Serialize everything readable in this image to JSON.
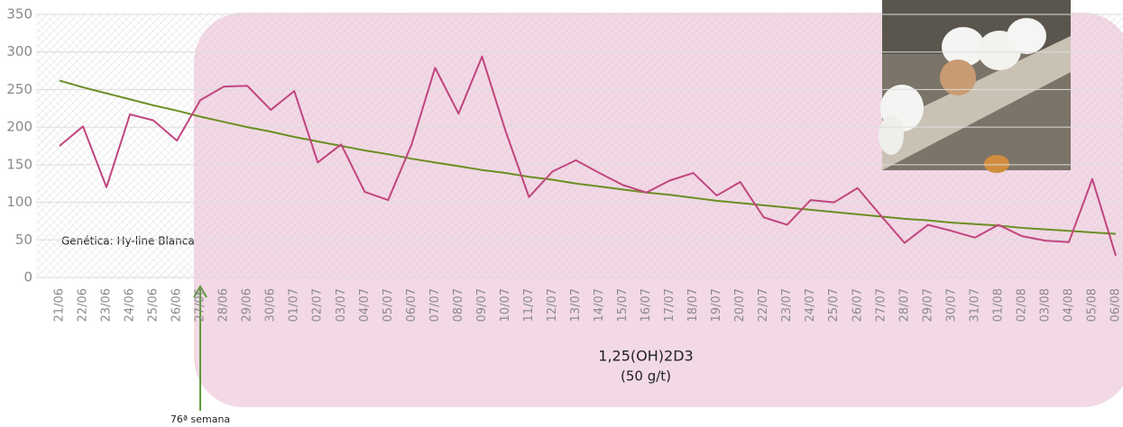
{
  "chart_data": {
    "type": "line",
    "categories": [
      "21/06",
      "22/06",
      "23/06",
      "24/06",
      "25/06",
      "26/06",
      "27/06",
      "28/06",
      "29/06",
      "30/06",
      "01/07",
      "02/07",
      "03/07",
      "04/07",
      "05/07",
      "06/07",
      "07/07",
      "08/07",
      "09/07",
      "10/07",
      "11/07",
      "12/07",
      "13/07",
      "14/07",
      "15/07",
      "16/07",
      "17/07",
      "18/07",
      "19/07",
      "20/07",
      "22/07",
      "23/07",
      "24/07",
      "25/07",
      "26/07",
      "27/07",
      "28/07",
      "29/07",
      "30/07",
      "31/07",
      "01/08",
      "02/08",
      "03/08",
      "04/08",
      "05/08",
      "06/08"
    ],
    "values": [
      175,
      201,
      120,
      217,
      209,
      182,
      236,
      254,
      255,
      223,
      248,
      153,
      177,
      114,
      103,
      177,
      279,
      218,
      294,
      195,
      107,
      141,
      156,
      139,
      123,
      113,
      129,
      139,
      109,
      127,
      80,
      70,
      103,
      100,
      119,
      82,
      46,
      70,
      62,
      53,
      70,
      55,
      49,
      47,
      131,
      29
    ],
    "color": "#c0457f",
    "trend_values": [
      262,
      253,
      245,
      237,
      229,
      222,
      214,
      207,
      200,
      194,
      187,
      181,
      175,
      169,
      164,
      158,
      153,
      148,
      143,
      139,
      134,
      130,
      125,
      121,
      117,
      113,
      110,
      106,
      102,
      99,
      96,
      93,
      90,
      87,
      84,
      81,
      78,
      76,
      73,
      71,
      69,
      66,
      64,
      62,
      60,
      58
    ],
    "trend_color": "#6b8e23",
    "ylim": [
      0,
      350
    ],
    "yticks": [
      0,
      50,
      100,
      150,
      200,
      250,
      300,
      350
    ],
    "grid": true,
    "annotations": {
      "genetics": "Genética: Hy-line Blanca",
      "treatment": "1,25(OH)2D3",
      "dose": "(50 g/t)",
      "week": "76ª semana"
    }
  }
}
